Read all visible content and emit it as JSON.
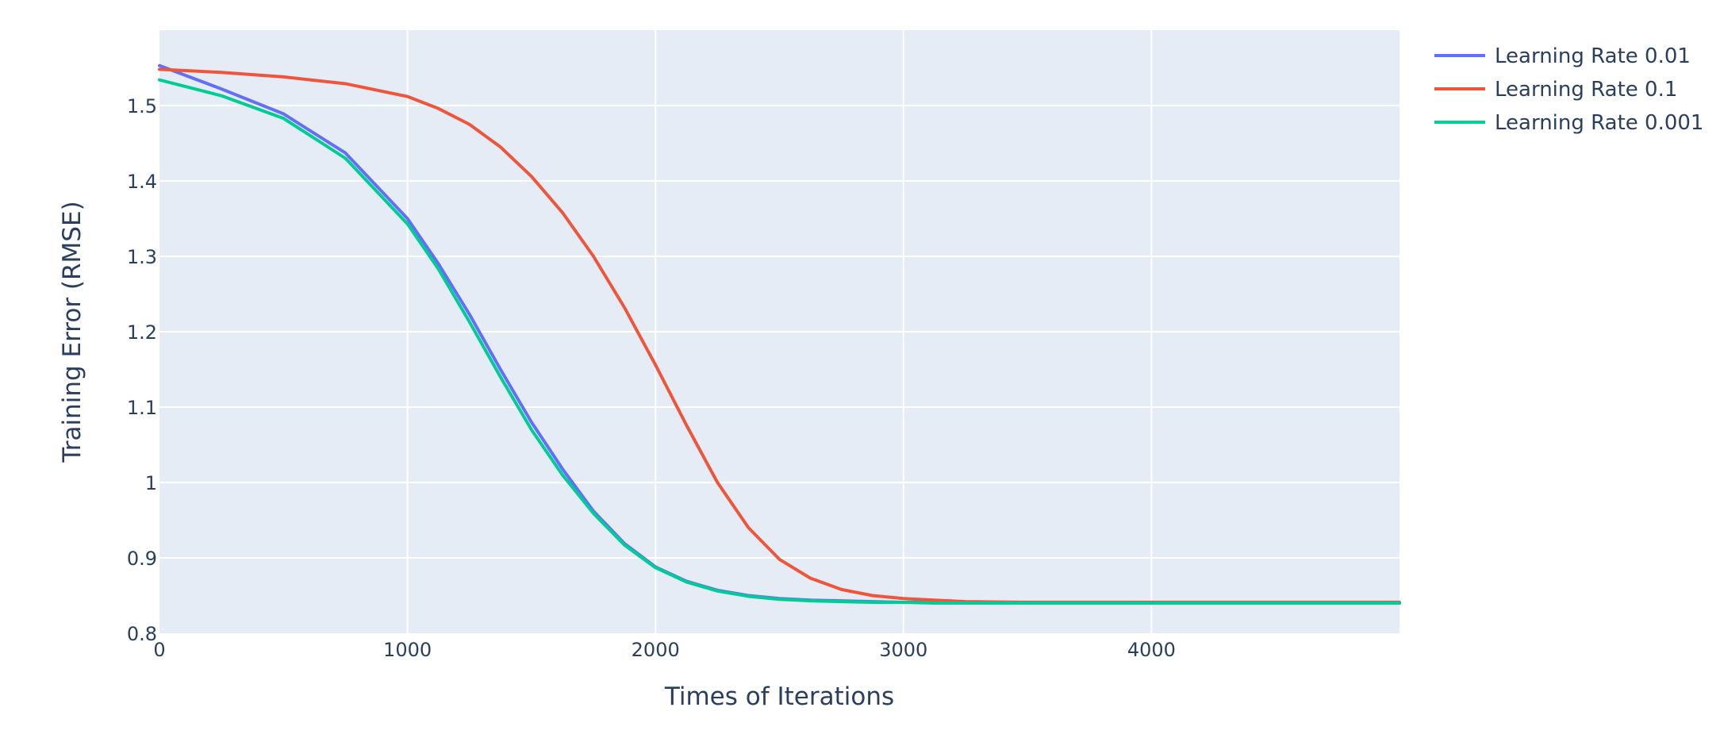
{
  "chart_data": {
    "type": "line",
    "title": "",
    "xlabel": "Times of Iterations",
    "ylabel": "Training Error (RMSE)",
    "xlim": [
      0,
      5000
    ],
    "ylim": [
      0.8,
      1.6
    ],
    "x_ticks": [
      0,
      1000,
      2000,
      3000,
      4000
    ],
    "x_tick_labels": [
      "0",
      "1000",
      "2000",
      "3000",
      "4000"
    ],
    "y_ticks": [
      0.8,
      0.9,
      1.0,
      1.1,
      1.2,
      1.3,
      1.4,
      1.5
    ],
    "y_tick_labels": [
      "0.8",
      "0.9",
      "1",
      "1.1",
      "1.2",
      "1.3",
      "1.4",
      "1.5"
    ],
    "grid": true,
    "legend_position": "top-right-outside",
    "colors": {
      "plot_background": "#e5ecf6",
      "grid": "#ffffff",
      "text": "#2a3f5f"
    },
    "x": [
      0,
      250,
      500,
      750,
      1000,
      1125,
      1250,
      1375,
      1500,
      1625,
      1750,
      1875,
      2000,
      2125,
      2250,
      2375,
      2500,
      2625,
      2750,
      2875,
      3000,
      3125,
      3250,
      3500,
      3750,
      4000,
      4500,
      5000
    ],
    "series": [
      {
        "name": "Learning Rate 0.01",
        "color": "#636efa",
        "values": [
          1.553,
          1.522,
          1.489,
          1.437,
          1.35,
          1.29,
          1.223,
          1.15,
          1.08,
          1.018,
          0.962,
          0.919,
          0.888,
          0.869,
          0.857,
          0.85,
          0.846,
          0.844,
          0.843,
          0.842,
          0.841,
          0.841,
          0.841,
          0.84,
          0.84,
          0.84,
          0.84,
          0.84
        ]
      },
      {
        "name": "Learning Rate 0.1",
        "color": "#ef553b",
        "values": [
          1.548,
          1.544,
          1.538,
          1.529,
          1.512,
          1.496,
          1.475,
          1.445,
          1.406,
          1.358,
          1.3,
          1.232,
          1.156,
          1.076,
          1.0,
          0.94,
          0.898,
          0.873,
          0.858,
          0.85,
          0.846,
          0.844,
          0.842,
          0.841,
          0.841,
          0.841,
          0.841,
          0.841
        ]
      },
      {
        "name": "Learning Rate 0.001",
        "color": "#00cc96",
        "values": [
          1.534,
          1.513,
          1.483,
          1.43,
          1.343,
          1.283,
          1.213,
          1.14,
          1.07,
          1.01,
          0.959,
          0.917,
          0.887,
          0.868,
          0.856,
          0.849,
          0.845,
          0.843,
          0.842,
          0.841,
          0.841,
          0.84,
          0.84,
          0.84,
          0.84,
          0.84,
          0.84,
          0.84
        ]
      }
    ]
  }
}
